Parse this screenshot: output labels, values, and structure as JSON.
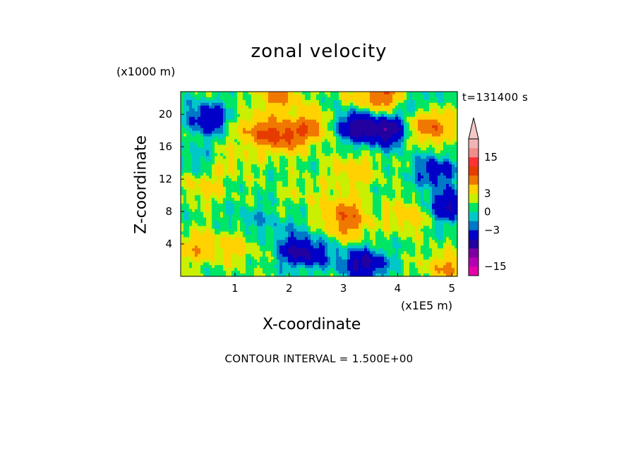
{
  "chart_data": {
    "type": "heatmap",
    "title": "zonal velocity",
    "time_label": "t=131400 s",
    "xlabel": "X-coordinate",
    "ylabel": "Z-coordinate",
    "x_unit": "(x1E5 m)",
    "y_unit": "(x1000 m)",
    "xlim": [
      0,
      5.1
    ],
    "ylim": [
      0,
      22.8
    ],
    "x_ticks": [
      1,
      2,
      3,
      4,
      5
    ],
    "y_ticks": [
      4,
      8,
      12,
      16,
      20
    ],
    "contour_interval_label": "CONTOUR INTERVAL = 1.500E+00",
    "colorbar": {
      "levels": [
        -18,
        -15,
        -12,
        -9,
        -6,
        -3,
        -1.5,
        0,
        1.5,
        3,
        6,
        9,
        12,
        15,
        18
      ],
      "colors": [
        "#e600a8",
        "#b400b4",
        "#7d00a0",
        "#2300a0",
        "#0000c8",
        "#0078c8",
        "#00c8c8",
        "#00e664",
        "#c8f000",
        "#ffd200",
        "#f07800",
        "#e63c00",
        "#ff3232",
        "#f08c8c",
        "#f0b4b4",
        "#f5c8c8"
      ],
      "tick_labels": [
        "15",
        "3",
        "0",
        "-3",
        "-15"
      ],
      "tick_values": [
        15,
        3,
        0,
        -3,
        -15
      ],
      "extend": "max"
    },
    "field_features": [
      {
        "x": 0.5,
        "z": 19.5,
        "value": -7
      },
      {
        "x": 1.4,
        "z": 18.0,
        "value": 6
      },
      {
        "x": 1.9,
        "z": 17.2,
        "value": 8
      },
      {
        "x": 2.4,
        "z": 18.5,
        "value": 6
      },
      {
        "x": 3.2,
        "z": 18.5,
        "value": -8
      },
      {
        "x": 3.8,
        "z": 18.0,
        "value": -9
      },
      {
        "x": 4.2,
        "z": 21.5,
        "value": -4
      },
      {
        "x": 3.9,
        "z": 22.0,
        "value": 6
      },
      {
        "x": 1.8,
        "z": 22.3,
        "value": 6
      },
      {
        "x": 3.5,
        "z": 22.5,
        "value": 5
      },
      {
        "x": 4.6,
        "z": 18.5,
        "value": 8
      },
      {
        "x": 4.7,
        "z": 13.0,
        "value": -6
      },
      {
        "x": 4.9,
        "z": 8.7,
        "value": -7
      },
      {
        "x": 3.2,
        "z": 13.0,
        "value": 4
      },
      {
        "x": 3.0,
        "z": 8.0,
        "value": 6
      },
      {
        "x": 3.1,
        "z": 6.0,
        "value": 4
      },
      {
        "x": 1.3,
        "z": 7.0,
        "value": -2
      },
      {
        "x": 1.9,
        "z": 6.0,
        "value": -1.5
      },
      {
        "x": 0.4,
        "z": 11.0,
        "value": 3
      },
      {
        "x": 0.3,
        "z": 3.5,
        "value": 4
      },
      {
        "x": 1.0,
        "z": 3.5,
        "value": 3
      },
      {
        "x": 4.2,
        "z": 7.5,
        "value": 4
      },
      {
        "x": 4.9,
        "z": 1.0,
        "value": 5
      },
      {
        "x": 2.2,
        "z": 3.0,
        "value": -8
      },
      {
        "x": 3.4,
        "z": 1.5,
        "value": -8
      },
      {
        "x": 2.8,
        "z": 2.5,
        "value": -2
      },
      {
        "x": 0.2,
        "z": 14.5,
        "value": -2
      },
      {
        "x": 2.3,
        "z": 10.5,
        "value": 1.5
      },
      {
        "x": 1.0,
        "z": 14.0,
        "value": 2
      }
    ]
  }
}
